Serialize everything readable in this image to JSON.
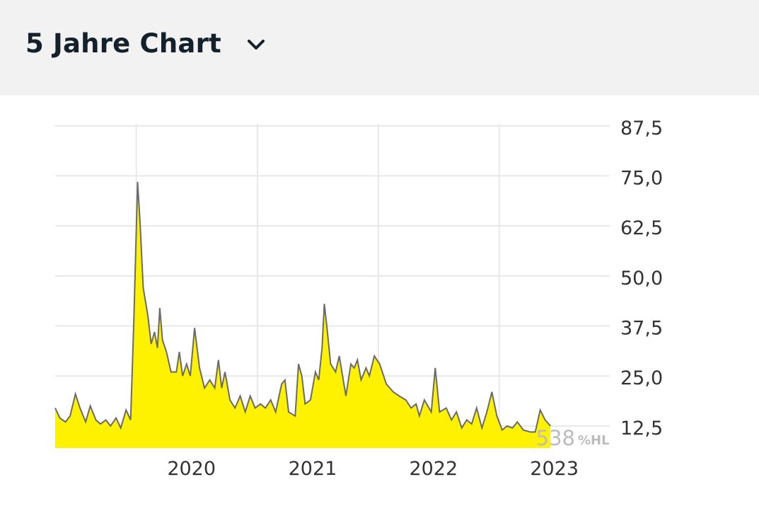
{
  "header": {
    "title": "5 Jahre Chart",
    "dropdown_icon": "chevron-down-icon"
  },
  "watermark": {
    "number": "538",
    "suffix": "%HL"
  },
  "colors": {
    "header_bg": "#f2f2f2",
    "title": "#14202b",
    "area_fill": "#fff200",
    "line": "#6b6b6b",
    "grid": "#e8e8e8",
    "axis_text": "#333333",
    "watermark": "#bcbcbc"
  },
  "chart_data": {
    "type": "area",
    "title": "",
    "xlabel": "",
    "ylabel": "",
    "x_ticks": [
      "2020",
      "2021",
      "2022",
      "2023"
    ],
    "y_ticks": [
      "12,5",
      "25,0",
      "37,5",
      "50,0",
      "62,5",
      "75,0",
      "87,5"
    ],
    "y_tick_values": [
      12.5,
      25.0,
      37.5,
      50.0,
      62.5,
      75.0,
      87.5
    ],
    "xlim": [
      "2019-05-01",
      "2023-12-01"
    ],
    "ylim": [
      7.0,
      88.0
    ],
    "grid": true,
    "series": [
      {
        "points": [
          [
            "2019-05-01",
            17.0
          ],
          [
            "2019-05-15",
            14.5
          ],
          [
            "2019-06-01",
            13.5
          ],
          [
            "2019-06-15",
            15.0
          ],
          [
            "2019-07-01",
            20.5
          ],
          [
            "2019-07-15",
            17.0
          ],
          [
            "2019-08-01",
            13.5
          ],
          [
            "2019-08-15",
            17.5
          ],
          [
            "2019-09-01",
            14.0
          ],
          [
            "2019-09-15",
            13.0
          ],
          [
            "2019-10-01",
            14.0
          ],
          [
            "2019-10-15",
            12.5
          ],
          [
            "2019-11-01",
            14.5
          ],
          [
            "2019-11-15",
            12.0
          ],
          [
            "2019-12-01",
            16.5
          ],
          [
            "2019-12-15",
            14.0
          ],
          [
            "2019-12-25",
            40.0
          ],
          [
            "2020-01-05",
            73.5
          ],
          [
            "2020-01-12",
            64.0
          ],
          [
            "2020-01-22",
            47.0
          ],
          [
            "2020-02-05",
            40.0
          ],
          [
            "2020-02-15",
            33.0
          ],
          [
            "2020-02-25",
            36.0
          ],
          [
            "2020-03-05",
            32.0
          ],
          [
            "2020-03-12",
            42.0
          ],
          [
            "2020-03-20",
            34.0
          ],
          [
            "2020-04-01",
            31.0
          ],
          [
            "2020-04-15",
            26.0
          ],
          [
            "2020-05-01",
            26.0
          ],
          [
            "2020-05-10",
            31.0
          ],
          [
            "2020-05-20",
            25.0
          ],
          [
            "2020-06-01",
            28.0
          ],
          [
            "2020-06-12",
            25.0
          ],
          [
            "2020-06-25",
            37.0
          ],
          [
            "2020-07-10",
            27.0
          ],
          [
            "2020-07-25",
            22.0
          ],
          [
            "2020-08-10",
            24.0
          ],
          [
            "2020-08-25",
            22.0
          ],
          [
            "2020-09-05",
            29.0
          ],
          [
            "2020-09-15",
            22.0
          ],
          [
            "2020-09-25",
            26.0
          ],
          [
            "2020-10-10",
            19.0
          ],
          [
            "2020-10-25",
            17.0
          ],
          [
            "2020-11-10",
            20.0
          ],
          [
            "2020-11-25",
            16.0
          ],
          [
            "2020-12-10",
            20.0
          ],
          [
            "2020-12-25",
            17.0
          ],
          [
            "2021-01-10",
            18.0
          ],
          [
            "2021-01-25",
            17.0
          ],
          [
            "2021-02-10",
            19.0
          ],
          [
            "2021-02-25",
            16.0
          ],
          [
            "2021-03-15",
            23.0
          ],
          [
            "2021-03-25",
            24.0
          ],
          [
            "2021-04-05",
            16.0
          ],
          [
            "2021-04-25",
            15.0
          ],
          [
            "2021-05-05",
            28.0
          ],
          [
            "2021-05-15",
            25.0
          ],
          [
            "2021-05-25",
            18.0
          ],
          [
            "2021-06-10",
            19.0
          ],
          [
            "2021-06-25",
            26.0
          ],
          [
            "2021-07-05",
            24.0
          ],
          [
            "2021-07-15",
            32.0
          ],
          [
            "2021-07-22",
            43.0
          ],
          [
            "2021-07-30",
            37.0
          ],
          [
            "2021-08-10",
            28.0
          ],
          [
            "2021-08-25",
            26.0
          ],
          [
            "2021-09-05",
            30.0
          ],
          [
            "2021-09-15",
            25.0
          ],
          [
            "2021-09-25",
            20.0
          ],
          [
            "2021-10-10",
            28.0
          ],
          [
            "2021-10-20",
            27.0
          ],
          [
            "2021-10-30",
            29.0
          ],
          [
            "2021-11-10",
            24.0
          ],
          [
            "2021-11-25",
            27.0
          ],
          [
            "2021-12-05",
            25.0
          ],
          [
            "2021-12-20",
            30.0
          ],
          [
            "2022-01-05",
            28.0
          ],
          [
            "2022-01-25",
            23.0
          ],
          [
            "2022-02-15",
            21.0
          ],
          [
            "2022-03-05",
            20.0
          ],
          [
            "2022-03-25",
            19.0
          ],
          [
            "2022-04-10",
            17.0
          ],
          [
            "2022-04-25",
            18.0
          ],
          [
            "2022-05-05",
            15.0
          ],
          [
            "2022-05-20",
            19.0
          ],
          [
            "2022-06-10",
            16.0
          ],
          [
            "2022-06-22",
            27.0
          ],
          [
            "2022-07-05",
            16.0
          ],
          [
            "2022-07-25",
            17.0
          ],
          [
            "2022-08-10",
            14.0
          ],
          [
            "2022-08-25",
            16.0
          ],
          [
            "2022-09-10",
            12.0
          ],
          [
            "2022-09-25",
            14.0
          ],
          [
            "2022-10-10",
            13.0
          ],
          [
            "2022-10-25",
            17.0
          ],
          [
            "2022-11-10",
            12.0
          ],
          [
            "2022-11-25",
            16.0
          ],
          [
            "2022-12-10",
            21.0
          ],
          [
            "2022-12-25",
            15.0
          ],
          [
            "2023-01-10",
            11.5
          ],
          [
            "2023-01-25",
            12.5
          ],
          [
            "2023-02-10",
            12.0
          ],
          [
            "2023-02-25",
            13.5
          ],
          [
            "2023-03-15",
            11.5
          ],
          [
            "2023-04-05",
            11.0
          ],
          [
            "2023-04-20",
            11.0
          ],
          [
            "2023-05-05",
            16.5
          ],
          [
            "2023-05-20",
            14.0
          ],
          [
            "2023-06-05",
            12.5
          ]
        ]
      }
    ]
  }
}
